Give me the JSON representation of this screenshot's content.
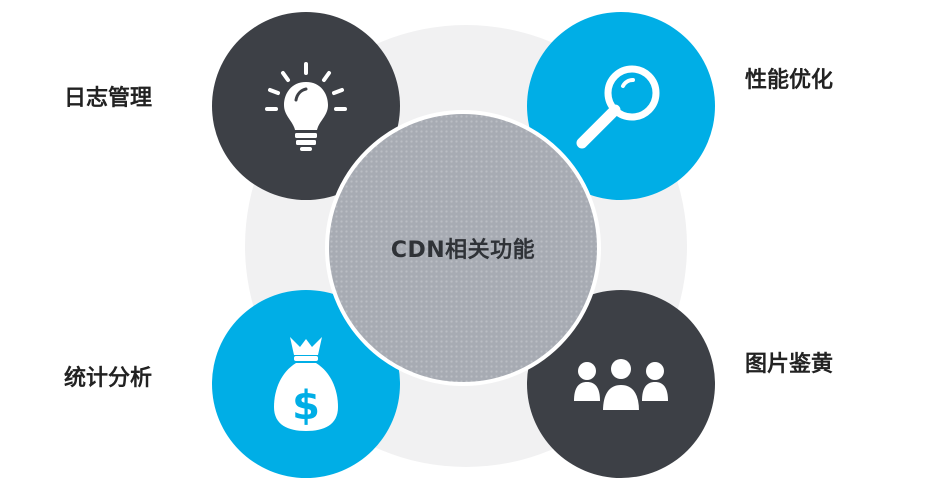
{
  "center": {
    "label": "CDN相关功能"
  },
  "features": [
    {
      "label": "日志管理",
      "icon": "lightbulb-icon",
      "color": "#3d4046"
    },
    {
      "label": "性能优化",
      "icon": "magnifier-icon",
      "color": "#00aee6"
    },
    {
      "label": "统计分析",
      "icon": "money-bag-icon",
      "color": "#00aee6"
    },
    {
      "label": "图片鉴黄",
      "icon": "people-icon",
      "color": "#3d4046"
    }
  ]
}
